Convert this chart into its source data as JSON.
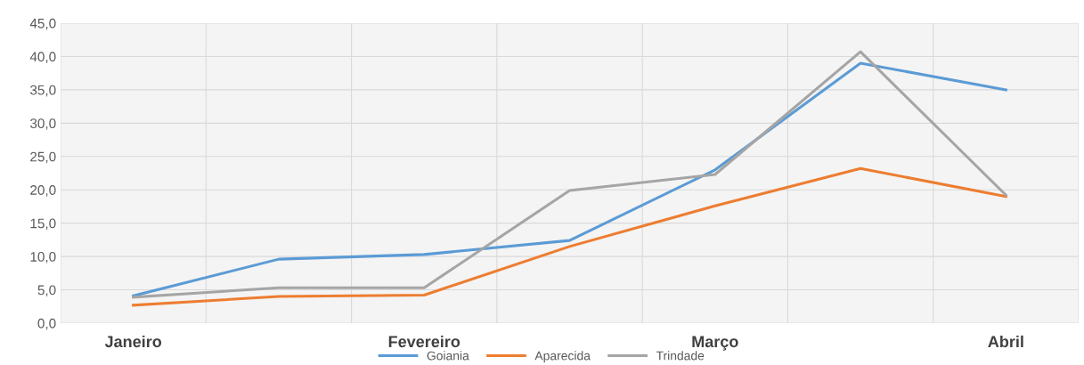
{
  "chart_data": {
    "type": "line",
    "categories": [
      "Janeiro",
      null,
      "Fevereiro",
      null,
      "Março",
      null,
      "Abril"
    ],
    "ylim": [
      0,
      45
    ],
    "yticks": [
      {
        "value": 0,
        "label": "0,0"
      },
      {
        "value": 5,
        "label": "5,0"
      },
      {
        "value": 10,
        "label": "10,0"
      },
      {
        "value": 15,
        "label": "15,0"
      },
      {
        "value": 20,
        "label": "20,0"
      },
      {
        "value": 25,
        "label": "25,0"
      },
      {
        "value": 30,
        "label": "30,0"
      },
      {
        "value": 35,
        "label": "35,0"
      },
      {
        "value": 40,
        "label": "40,0"
      },
      {
        "value": 45,
        "label": "45,0"
      }
    ],
    "grid": true,
    "legend": "bottom",
    "marker": "none",
    "series": [
      {
        "name": "Goiania",
        "color": "#5b9bd5",
        "values": [
          4.1,
          9.6,
          10.3,
          12.4,
          23.0,
          39.0,
          35.0
        ]
      },
      {
        "name": "Aparecida",
        "color": "#ed7d31",
        "values": [
          2.7,
          4.0,
          4.2,
          11.5,
          17.6,
          23.2,
          19.0
        ]
      },
      {
        "name": "Trindade",
        "color": "#a5a5a5",
        "values": [
          3.9,
          5.3,
          5.3,
          19.9,
          22.3,
          40.7,
          19.2
        ]
      }
    ]
  }
}
